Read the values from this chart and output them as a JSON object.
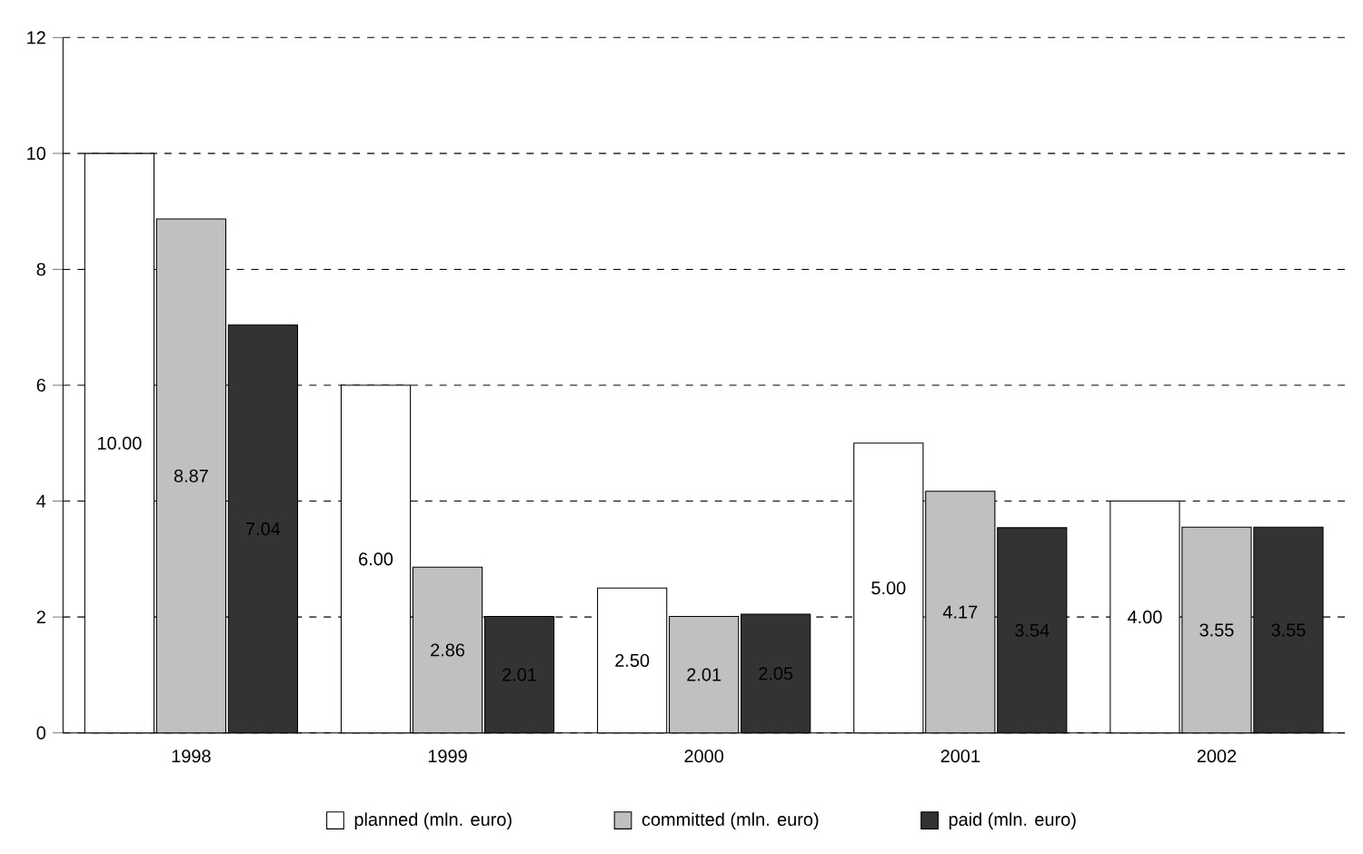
{
  "chart_data": {
    "type": "bar",
    "categories": [
      "1998",
      "1999",
      "2000",
      "2001",
      "2002"
    ],
    "series": [
      {
        "name": "planned (mln. euro)",
        "color": "#ffffff",
        "values": [
          10,
          6,
          2.5,
          5,
          4
        ],
        "value_labels": [
          "10.00",
          "6.00",
          "2.50",
          "5.00",
          "4.00"
        ]
      },
      {
        "name": "committed (mln. euro)",
        "color": "#c0c0c0",
        "values": [
          8.87,
          2.86,
          2.01,
          4.17,
          3.55
        ],
        "value_labels": [
          "8.87",
          "2.86",
          "2.01",
          "4.17",
          "3.55"
        ]
      },
      {
        "name": "paid (mln. euro)",
        "color": "#333333",
        "values": [
          7.04,
          2.01,
          2.05,
          3.54,
          3.55
        ],
        "value_labels": [
          "7.04",
          "2.01",
          "2.05",
          "3.54",
          "3.55"
        ]
      }
    ],
    "ylim": [
      0,
      12
    ],
    "yticks": [
      0,
      2,
      4,
      6,
      8,
      10,
      12
    ],
    "grid": "y",
    "legend": "bottom"
  }
}
